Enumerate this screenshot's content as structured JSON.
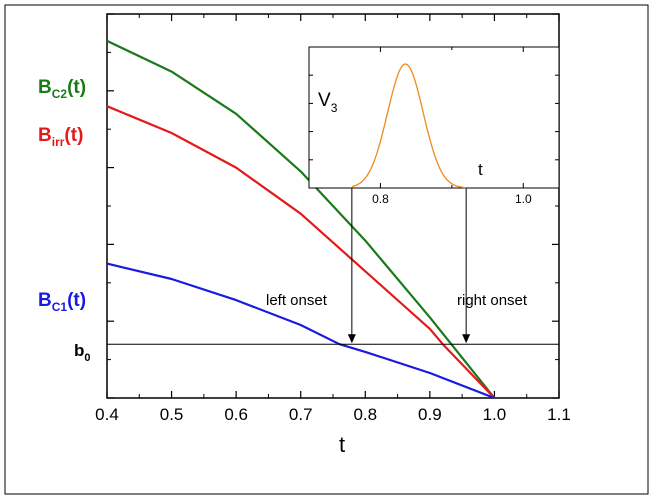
{
  "chart_data": [
    {
      "type": "line",
      "xlabel": "t",
      "ylabel": "",
      "xlim": [
        0.4,
        1.1
      ],
      "ylim": [
        0,
        1
      ],
      "xticks": [
        "0.4",
        "0.5",
        "0.6",
        "0.7",
        "0.8",
        "0.9",
        "1.0",
        "1.1"
      ],
      "series": [
        {
          "name": "B_C2(t)",
          "label_main": "B",
          "label_sub": "C2",
          "label_tail": "(t)",
          "color": "#1a7a1a",
          "x": [
            0.4,
            0.5,
            0.6,
            0.7,
            0.8,
            0.9,
            1.0
          ],
          "y": [
            0.93,
            0.85,
            0.74,
            0.59,
            0.41,
            0.21,
            0.0
          ]
        },
        {
          "name": "B_irr(t)",
          "label_main": "B",
          "label_sub": "irr",
          "label_tail": "(t)",
          "color": "#e41a1a",
          "x": [
            0.4,
            0.5,
            0.6,
            0.7,
            0.8,
            0.9,
            0.92,
            1.0
          ],
          "y": [
            0.76,
            0.69,
            0.6,
            0.48,
            0.33,
            0.18,
            0.14,
            0.0
          ]
        },
        {
          "name": "B_C1(t)",
          "label_main": "B",
          "label_sub": "C1",
          "label_tail": "(t)",
          "color": "#1a1ae0",
          "x": [
            0.4,
            0.5,
            0.6,
            0.7,
            0.76,
            0.8,
            0.9,
            1.0
          ],
          "y": [
            0.35,
            0.31,
            0.255,
            0.19,
            0.14,
            0.12,
            0.065,
            0.0
          ]
        }
      ],
      "hline": {
        "label_main": "b",
        "label_sub": "0",
        "y": 0.14
      },
      "annotations": [
        {
          "text": "left onset",
          "x": 0.76
        },
        {
          "text": "right onset",
          "x": 0.92
        }
      ]
    },
    {
      "type": "line",
      "xlabel": "t",
      "ylabel_main": "V",
      "ylabel_sub": "3",
      "xlim": [
        0.7,
        1.05
      ],
      "ylim": [
        0,
        1
      ],
      "xticks": [
        "0.8",
        "1.0"
      ],
      "series": [
        {
          "name": "",
          "color": "#f08a1c",
          "peak_x": 0.835,
          "width": 0.025,
          "peak_y": 0.88
        }
      ]
    }
  ]
}
